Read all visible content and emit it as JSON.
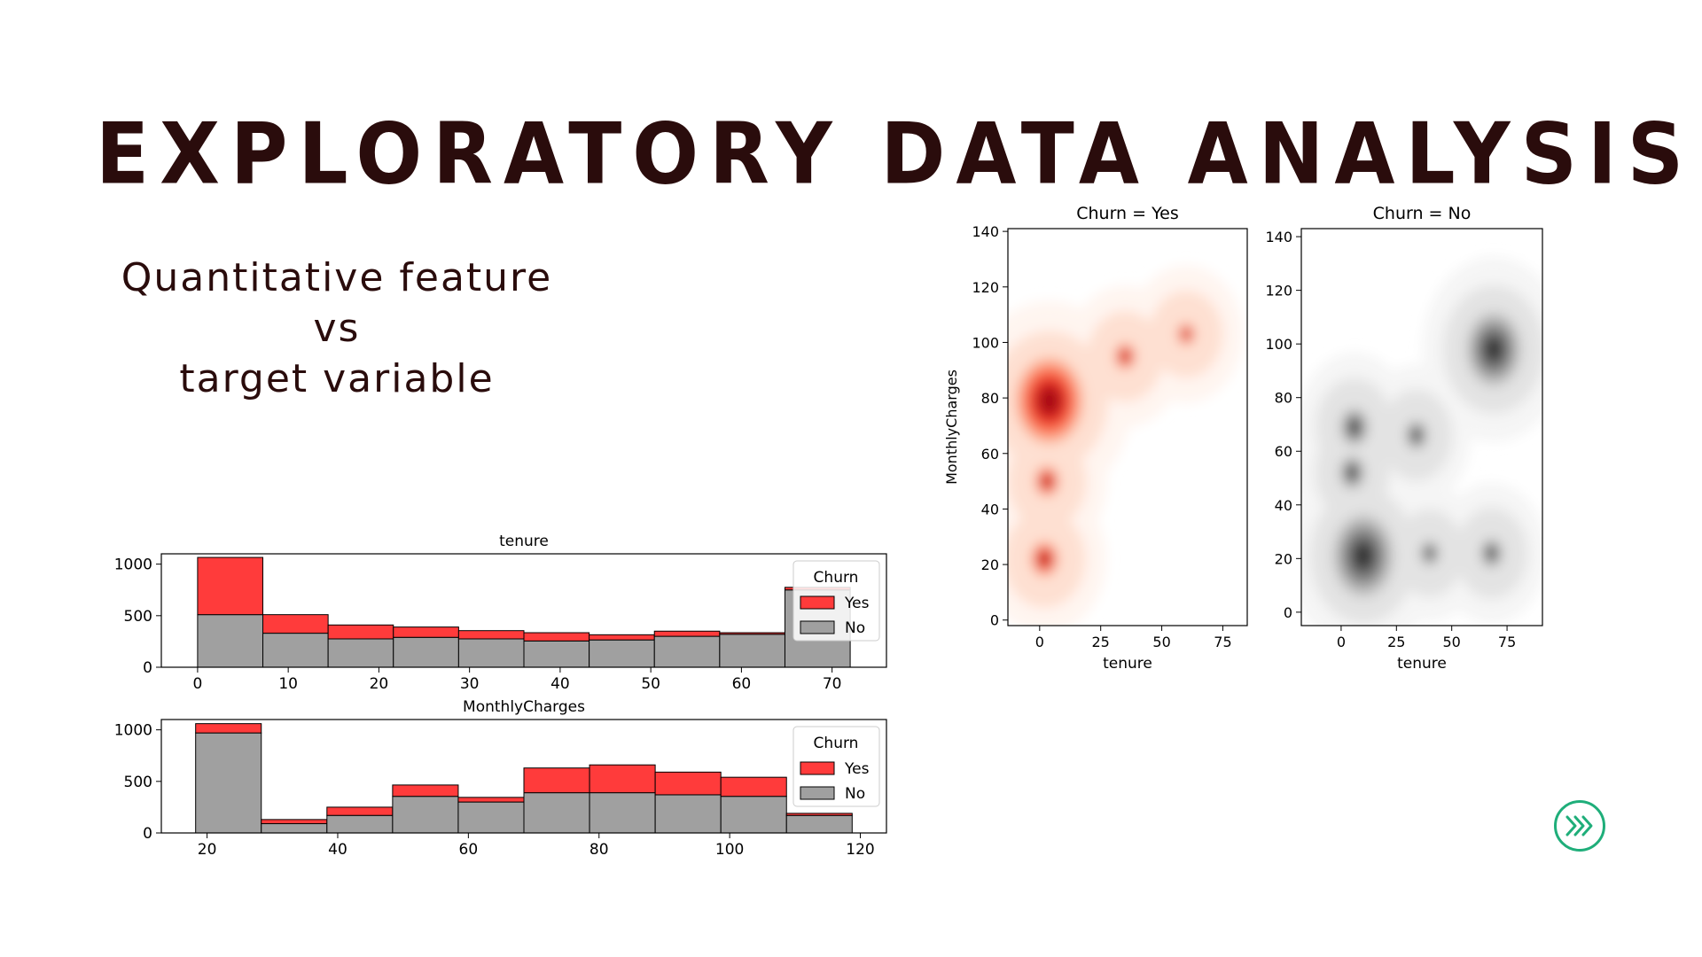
{
  "slide": {
    "title": "Exploratory Data Analysis",
    "subtitle_lines": [
      "Quantitative feature",
      "vs",
      "target variable"
    ]
  },
  "colors": {
    "yes": "#ff3b3b",
    "no": "#a0a0a0",
    "title": "#2a0c0c",
    "accent": "#1fae7a"
  },
  "icons": {
    "next": "chevron-double-right-icon"
  },
  "chart_data": [
    {
      "type": "bar",
      "subtype": "stacked-histogram",
      "title": "tenure",
      "xlabel": "",
      "ylabel": "",
      "bin_edges": [
        0,
        7.2,
        14.4,
        21.6,
        28.8,
        36,
        43.2,
        50.4,
        57.6,
        64.8,
        72
      ],
      "xlim": [
        -4,
        76
      ],
      "ylim": [
        0,
        1100
      ],
      "xticks": [
        0,
        10,
        20,
        30,
        40,
        50,
        60,
        70
      ],
      "yticks": [
        0,
        500,
        1000
      ],
      "series": [
        {
          "name": "No",
          "color": "#a0a0a0",
          "values": [
            510,
            330,
            275,
            290,
            275,
            255,
            265,
            300,
            320,
            750
          ]
        },
        {
          "name": "Yes",
          "color": "#ff3b3b",
          "values": [
            555,
            180,
            135,
            100,
            80,
            80,
            50,
            50,
            15,
            25
          ]
        }
      ],
      "legend": {
        "title": "Churn",
        "entries": [
          "Yes",
          "No"
        ],
        "position": "upper-right"
      }
    },
    {
      "type": "bar",
      "subtype": "stacked-histogram",
      "title": "MonthlyCharges",
      "xlabel": "",
      "ylabel": "",
      "bin_edges": [
        18.25,
        28.3,
        38.35,
        48.4,
        58.45,
        68.5,
        78.55,
        88.6,
        98.65,
        108.7,
        118.75
      ],
      "xlim": [
        13,
        124
      ],
      "ylim": [
        0,
        1100
      ],
      "xticks": [
        20,
        40,
        60,
        80,
        100,
        120
      ],
      "yticks": [
        0,
        500,
        1000
      ],
      "series": [
        {
          "name": "No",
          "color": "#a0a0a0",
          "values": [
            970,
            90,
            170,
            355,
            300,
            390,
            390,
            370,
            355,
            170
          ]
        },
        {
          "name": "Yes",
          "color": "#ff3b3b",
          "values": [
            90,
            40,
            80,
            110,
            45,
            240,
            270,
            220,
            185,
            20
          ]
        }
      ],
      "legend": {
        "title": "Churn",
        "entries": [
          "Yes",
          "No"
        ],
        "position": "upper-right"
      }
    },
    {
      "type": "heatmap",
      "subtype": "kde-density",
      "title": "Churn = Yes",
      "xlabel": "tenure",
      "ylabel": "MonthlyCharges",
      "xlim": [
        -13,
        85
      ],
      "ylim": [
        -2,
        141
      ],
      "xticks": [
        0,
        25,
        50,
        75
      ],
      "yticks": [
        0,
        20,
        40,
        60,
        80,
        100,
        120,
        140
      ],
      "palette": "Reds",
      "colors": [
        "#fff5f0",
        "#fee0d2",
        "#fcbba1",
        "#fc9272",
        "#fb6a4a",
        "#ef3b2c",
        "#cb181d",
        "#a50f15"
      ],
      "modes": [
        {
          "x": 4,
          "y": 79,
          "weight": 1.0
        },
        {
          "x": 3,
          "y": 50,
          "weight": 0.35
        },
        {
          "x": 2,
          "y": 22,
          "weight": 0.4
        },
        {
          "x": 35,
          "y": 95,
          "weight": 0.3
        },
        {
          "x": 60,
          "y": 103,
          "weight": 0.25
        }
      ]
    },
    {
      "type": "heatmap",
      "subtype": "kde-density",
      "title": "Churn = No",
      "xlabel": "tenure",
      "ylabel": "",
      "xlim": [
        -18,
        91
      ],
      "ylim": [
        -5,
        143
      ],
      "xticks": [
        0,
        25,
        50,
        75
      ],
      "yticks": [
        0,
        20,
        40,
        60,
        80,
        100,
        120,
        140
      ],
      "palette": "Greys",
      "colors": [
        "#f5f5f5",
        "#e3e3e3",
        "#cccccc",
        "#b3b3b3",
        "#969696",
        "#7a7a7a",
        "#5e5e5e",
        "#2e2e2e"
      ],
      "modes": [
        {
          "x": 10,
          "y": 21,
          "weight": 1.0
        },
        {
          "x": 69,
          "y": 98,
          "weight": 0.9
        },
        {
          "x": 6,
          "y": 69,
          "weight": 0.45
        },
        {
          "x": 5,
          "y": 52,
          "weight": 0.4
        },
        {
          "x": 34,
          "y": 66,
          "weight": 0.35
        },
        {
          "x": 68,
          "y": 22,
          "weight": 0.35
        },
        {
          "x": 40,
          "y": 22,
          "weight": 0.3
        }
      ]
    }
  ]
}
